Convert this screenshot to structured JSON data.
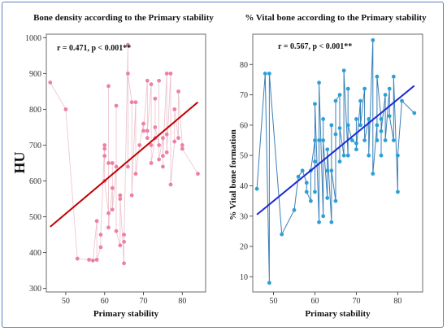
{
  "chart_data": [
    {
      "type": "scatter",
      "title": "Bone density according to the Primary stability",
      "annotation": "r = 0.471, p < 0.001**",
      "xlabel": "Primary stability",
      "ylabel": "HU",
      "xlim": [
        45,
        86
      ],
      "ylim": [
        290,
        1010
      ],
      "xticks": [
        50,
        60,
        70,
        80
      ],
      "yticks": [
        300,
        400,
        500,
        600,
        700,
        800,
        900,
        1000
      ],
      "point_color": "#ee7fa6",
      "connect_color": "#e8b6c2",
      "fit_color": "#c00000",
      "fit_line": {
        "x": [
          46,
          84
        ],
        "y": [
          472,
          820
        ]
      },
      "series": [
        {
          "x": [
            46,
            50,
            53,
            56,
            57,
            58,
            58,
            59,
            59,
            60,
            60,
            60,
            60,
            61,
            61,
            61,
            61,
            62,
            62,
            62,
            63,
            63,
            63,
            64,
            64,
            64,
            65,
            65,
            65,
            66,
            66,
            66,
            67,
            67,
            68,
            68,
            69,
            70,
            70,
            71,
            71,
            71,
            72,
            72,
            72,
            73,
            73,
            73,
            74,
            74,
            74,
            75,
            75,
            75,
            76,
            76,
            76,
            77,
            77,
            78,
            78,
            79,
            79,
            80,
            80,
            84
          ],
          "y": [
            875,
            800,
            383,
            380,
            378,
            488,
            380,
            415,
            450,
            700,
            690,
            670,
            600,
            510,
            650,
            865,
            470,
            580,
            650,
            520,
            640,
            810,
            460,
            420,
            560,
            550,
            370,
            450,
            430,
            980,
            640,
            900,
            820,
            560,
            820,
            620,
            700,
            760,
            740,
            880,
            720,
            740,
            870,
            700,
            650,
            720,
            830,
            750,
            700,
            880,
            660,
            720,
            640,
            670,
            900,
            730,
            680,
            900,
            590,
            710,
            800,
            720,
            850,
            700,
            690,
            620
          ]
        }
      ]
    },
    {
      "type": "scatter",
      "title": "% Vital bone according to the Primary stability",
      "annotation": "r = 0.567, p < 0.001**",
      "xlabel": "Primary stability",
      "ylabel": "% Vital bone formation",
      "xlim": [
        45,
        86
      ],
      "ylim": [
        5,
        90
      ],
      "xticks": [
        50,
        60,
        70,
        80
      ],
      "yticks": [
        10,
        20,
        30,
        40,
        50,
        60,
        70,
        80
      ],
      "point_color": "#2ba0d6",
      "connect_color": "#2f78b4",
      "fit_color": "#1d2ad3",
      "fit_line": {
        "x": [
          46,
          84
        ],
        "y": [
          30.5,
          73
        ]
      },
      "series": [
        {
          "x": [
            46,
            48,
            49,
            49,
            52,
            55,
            56,
            57,
            58,
            58,
            59,
            59,
            60,
            60,
            60,
            60,
            61,
            61,
            61,
            62,
            62,
            62,
            63,
            63,
            63,
            64,
            64,
            64,
            65,
            65,
            65,
            66,
            66,
            66,
            67,
            67,
            68,
            68,
            68,
            69,
            70,
            70,
            70,
            71,
            71,
            72,
            72,
            73,
            73,
            74,
            74,
            75,
            75,
            75,
            76,
            76,
            76,
            77,
            77,
            78,
            78,
            79,
            79,
            80,
            80,
            81,
            84
          ],
          "y": [
            39,
            77,
            8,
            77,
            24,
            32,
            43,
            45,
            41,
            38,
            35,
            45,
            55,
            48,
            38,
            67,
            28,
            55,
            74,
            30,
            62,
            55,
            36,
            45,
            52,
            28,
            60,
            45,
            35,
            57,
            68,
            70,
            48,
            59,
            50,
            78,
            50,
            72,
            60,
            55,
            54,
            62,
            52,
            68,
            60,
            72,
            55,
            62,
            50,
            88,
            44,
            60,
            55,
            76,
            62,
            50,
            58,
            70,
            55,
            72,
            63,
            55,
            76,
            38,
            50,
            68,
            64
          ]
        }
      ]
    }
  ]
}
